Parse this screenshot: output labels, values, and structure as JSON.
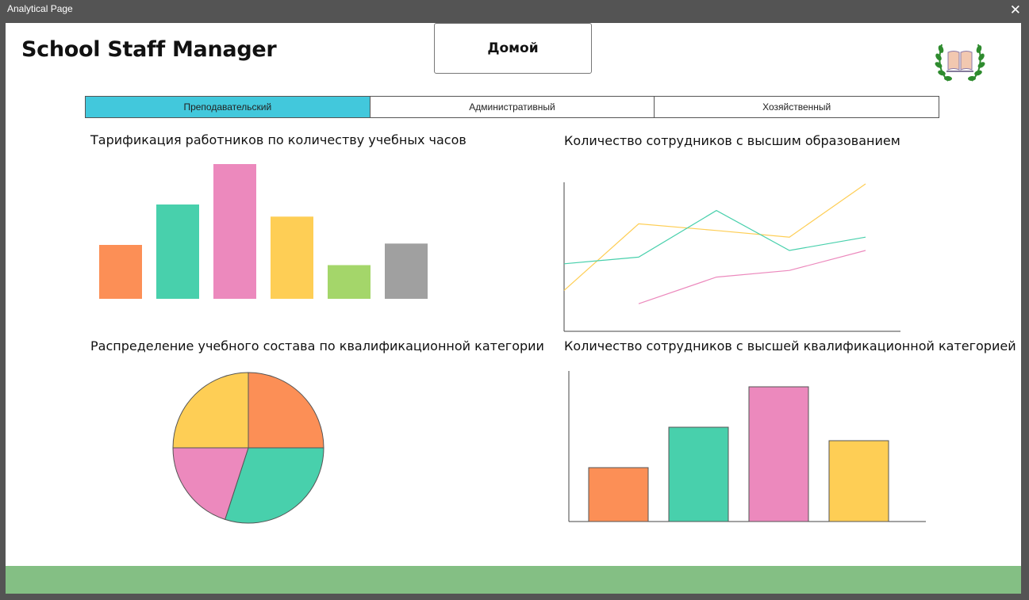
{
  "window": {
    "title": "Analytical Page",
    "close_icon": "close-icon"
  },
  "header": {
    "app_title": "School Staff Manager",
    "home_label": "Домой",
    "logo_icon": "laurel-book-icon"
  },
  "tabs": [
    {
      "label": "Преподавательский",
      "active": true
    },
    {
      "label": "Административный",
      "active": false
    },
    {
      "label": "Хозяйственный",
      "active": false
    }
  ],
  "colors": {
    "accent_tab": "#42C8DC",
    "footer": "#84BF84",
    "orange": "#FC8F56",
    "teal": "#48D0AC",
    "pink": "#EC89BD",
    "yellow": "#FECE55",
    "green": "#A4D66A",
    "gray": "#A0A0A0"
  },
  "charts": {
    "hours": {
      "title": "Тарификация работников по количеству учебных часов"
    },
    "education": {
      "title": "Количество сотрудников с высшим образованием"
    },
    "qualification": {
      "title": "Распределение учебного состава по квалификационной категории"
    },
    "highest": {
      "title": "Количество сотрудников с высшей квалификационной категорией"
    }
  },
  "chart_data": [
    {
      "type": "bar",
      "title": "Тарификация работников по количеству учебных часов",
      "values": [
        40,
        70,
        100,
        61,
        25,
        41
      ],
      "colors": [
        "#FC8F56",
        "#48D0AC",
        "#EC89BD",
        "#FECE55",
        "#A4D66A",
        "#A0A0A0"
      ],
      "ylim": [
        0,
        100
      ],
      "axes": false
    },
    {
      "type": "line",
      "title": "Количество сотрудников с высшим образованием",
      "x": [
        0,
        1,
        2,
        3,
        4
      ],
      "series": [
        {
          "color": "#FECE55",
          "values": [
            20,
            70,
            65,
            60,
            100
          ]
        },
        {
          "color": "#48D0AC",
          "values": [
            40,
            45,
            80,
            50,
            60
          ]
        },
        {
          "color": "#EC89BD",
          "values": [
            null,
            10,
            30,
            35,
            50
          ]
        }
      ],
      "ylim": [
        0,
        100
      ]
    },
    {
      "type": "pie",
      "title": "Распределение учебного состава по квалификационной категории",
      "values": [
        25,
        30,
        20,
        25
      ],
      "colors": [
        "#FC8F56",
        "#48D0AC",
        "#EC89BD",
        "#FECE55"
      ]
    },
    {
      "type": "bar",
      "title": "Количество сотрудников с высшей квалификационной категорией",
      "values": [
        40,
        70,
        100,
        60
      ],
      "colors": [
        "#FC8F56",
        "#48D0AC",
        "#EC89BD",
        "#FECE55"
      ],
      "ylim": [
        0,
        100
      ],
      "axes": true
    }
  ]
}
